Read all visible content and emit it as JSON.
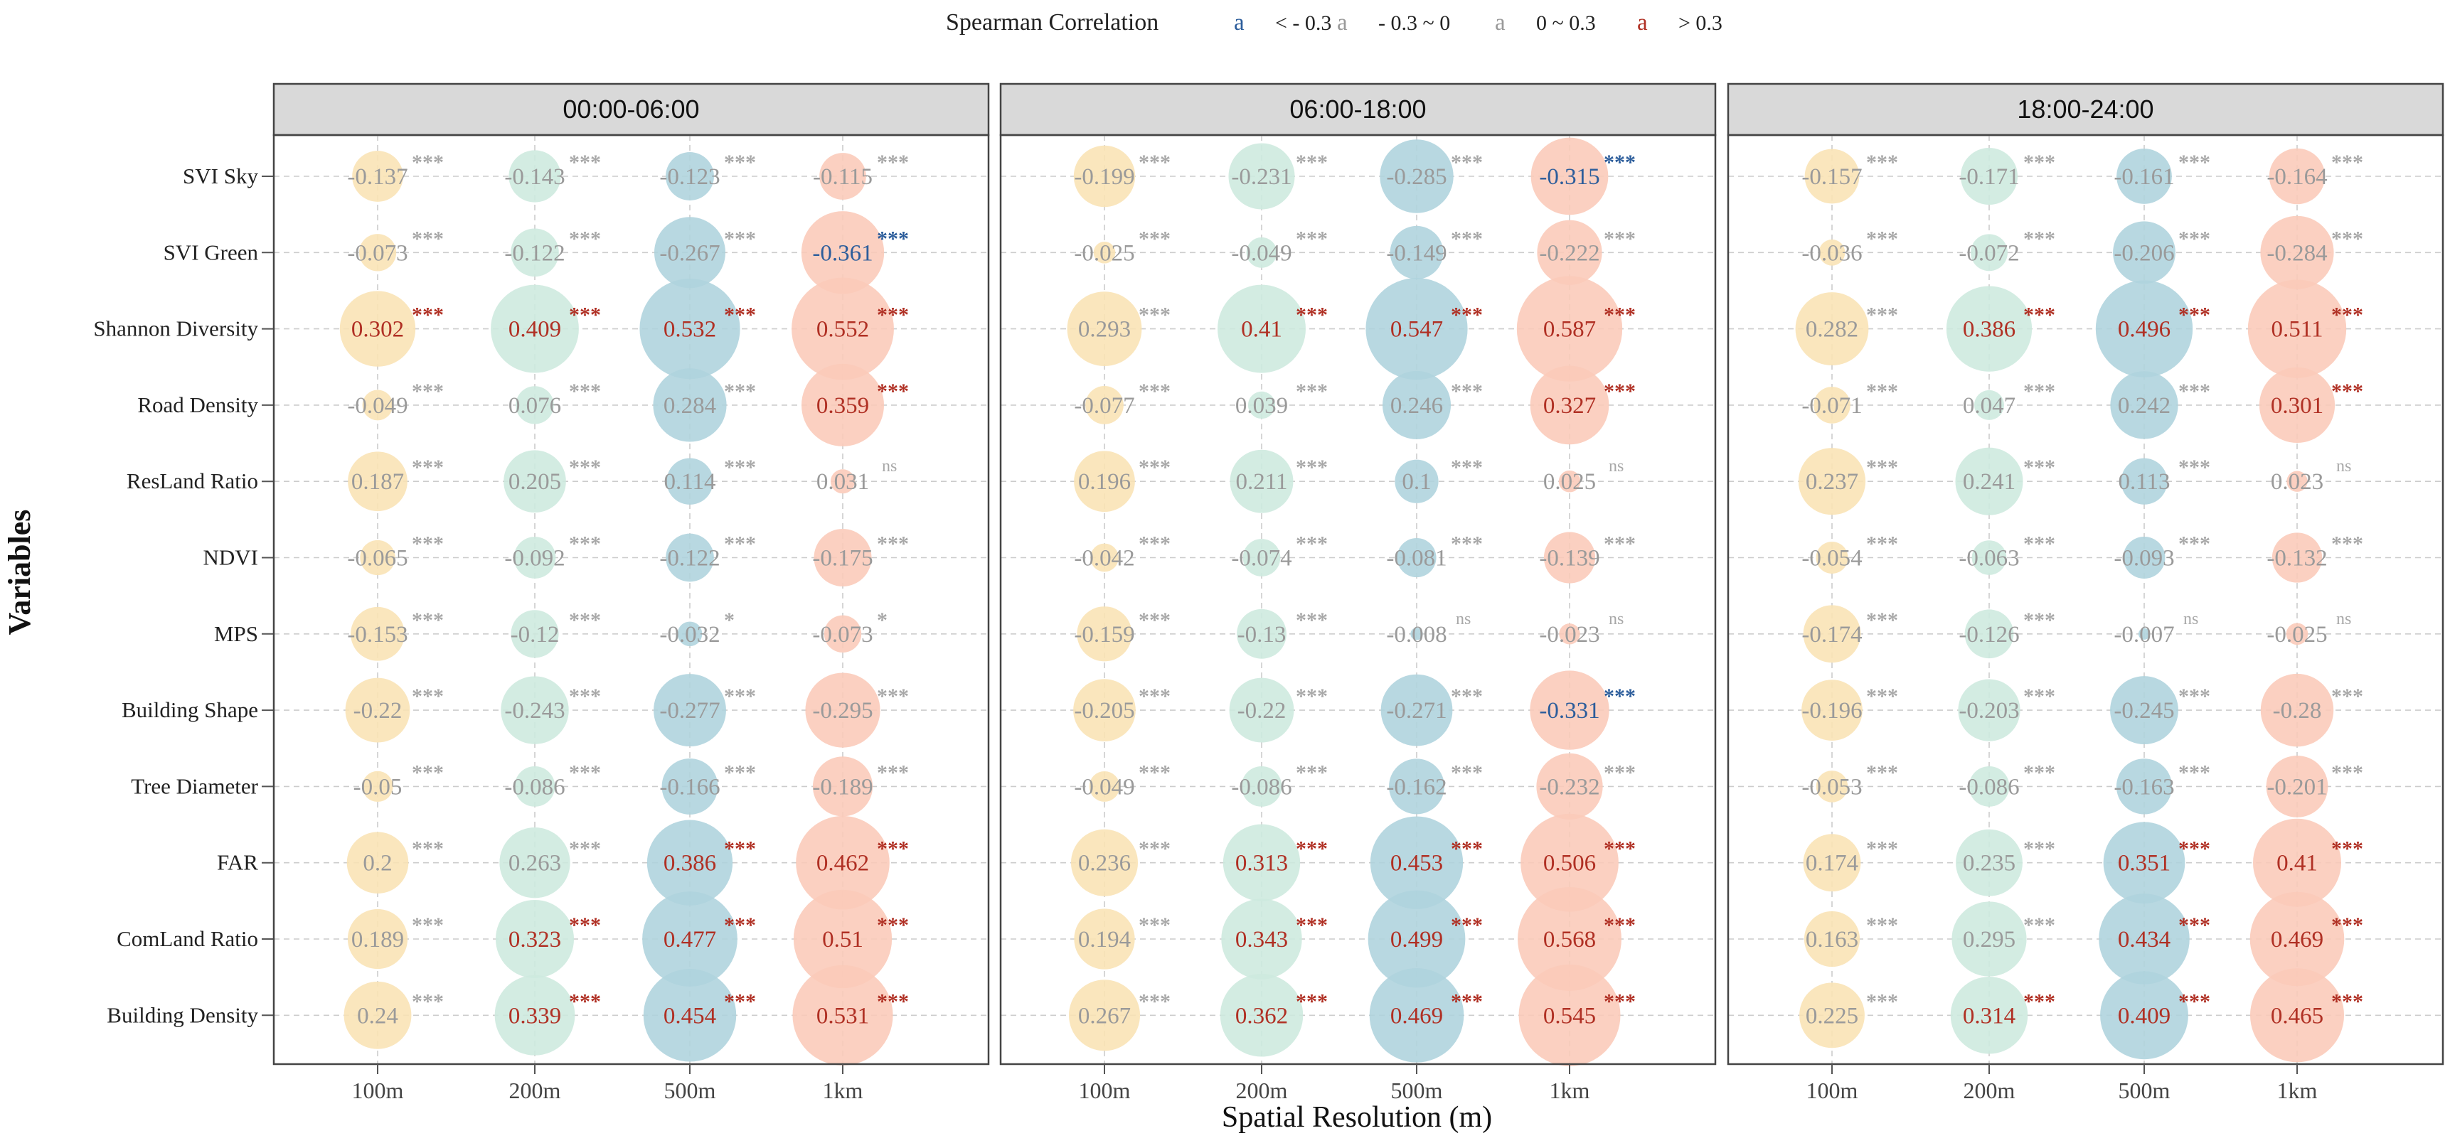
{
  "chart_data": {
    "type": "bubble-matrix",
    "title": "",
    "legend": {
      "title": "Spearman Correlation",
      "glyph": "a",
      "items": [
        {
          "glyph": "a",
          "label": "< - 0.3",
          "color": "#2c5d9b"
        },
        {
          "glyph": "a",
          "label": "- 0.3 ~ 0",
          "color": "#9a9a9a"
        },
        {
          "glyph": "a",
          "label": "0 ~ 0.3",
          "color": "#9a9a9a"
        },
        {
          "glyph": "a",
          "label": "> 0.3",
          "color": "#b03024"
        }
      ],
      "position": "top-center"
    },
    "xlabel": "Spatial Resolution (m)",
    "ylabel": "Variables",
    "resolutions": [
      "100m",
      "200m",
      "500m",
      "1km"
    ],
    "resolution_colors": [
      "#f9e3b4",
      "#cde9de",
      "#aed3dd",
      "#fbcab8"
    ],
    "variables": [
      "SVI Sky",
      "SVI Green",
      "Shannon Diversity",
      "Road Density",
      "ResLand Ratio",
      "NDVI",
      "MPS",
      "Building Shape",
      "Tree Diameter",
      "FAR",
      "ComLand Ratio",
      "Building Density"
    ],
    "panels": [
      {
        "title": "00:00-06:00",
        "values": [
          [
            -0.137,
            -0.143,
            -0.123,
            -0.115
          ],
          [
            -0.073,
            -0.122,
            -0.267,
            -0.361
          ],
          [
            0.302,
            0.409,
            0.532,
            0.552
          ],
          [
            -0.049,
            0.076,
            0.284,
            0.359
          ],
          [
            0.187,
            0.205,
            0.114,
            0.031
          ],
          [
            -0.065,
            -0.092,
            -0.122,
            -0.175
          ],
          [
            -0.153,
            -0.12,
            -0.032,
            -0.073
          ],
          [
            -0.22,
            -0.243,
            -0.277,
            -0.295
          ],
          [
            -0.05,
            -0.086,
            -0.166,
            -0.189
          ],
          [
            0.2,
            0.263,
            0.386,
            0.462
          ],
          [
            0.189,
            0.323,
            0.477,
            0.51
          ],
          [
            0.24,
            0.339,
            0.454,
            0.531
          ]
        ],
        "sig": [
          [
            "***",
            "***",
            "***",
            "***"
          ],
          [
            "***",
            "***",
            "***",
            "***"
          ],
          [
            "***",
            "***",
            "***",
            "***"
          ],
          [
            "***",
            "***",
            "***",
            "***"
          ],
          [
            "***",
            "***",
            "***",
            "ns"
          ],
          [
            "***",
            "***",
            "***",
            "***"
          ],
          [
            "***",
            "***",
            "*",
            "*"
          ],
          [
            "***",
            "***",
            "***",
            "***"
          ],
          [
            "***",
            "***",
            "***",
            "***"
          ],
          [
            "***",
            "***",
            "***",
            "***"
          ],
          [
            "***",
            "***",
            "***",
            "***"
          ],
          [
            "***",
            "***",
            "***",
            "***"
          ]
        ]
      },
      {
        "title": "06:00-18:00",
        "values": [
          [
            -0.199,
            -0.231,
            -0.285,
            -0.315
          ],
          [
            -0.025,
            -0.049,
            -0.149,
            -0.222
          ],
          [
            0.293,
            0.41,
            0.547,
            0.587
          ],
          [
            -0.077,
            0.039,
            0.246,
            0.327
          ],
          [
            0.196,
            0.211,
            0.1,
            0.025
          ],
          [
            -0.042,
            -0.074,
            -0.081,
            -0.139
          ],
          [
            -0.159,
            -0.13,
            -0.008,
            -0.023
          ],
          [
            -0.205,
            -0.22,
            -0.271,
            -0.331
          ],
          [
            -0.049,
            -0.086,
            -0.162,
            -0.232
          ],
          [
            0.236,
            0.313,
            0.453,
            0.506
          ],
          [
            0.194,
            0.343,
            0.499,
            0.568
          ],
          [
            0.267,
            0.362,
            0.469,
            0.545
          ]
        ],
        "sig": [
          [
            "***",
            "***",
            "***",
            "***"
          ],
          [
            "***",
            "***",
            "***",
            "***"
          ],
          [
            "***",
            "***",
            "***",
            "***"
          ],
          [
            "***",
            "***",
            "***",
            "***"
          ],
          [
            "***",
            "***",
            "***",
            "ns"
          ],
          [
            "***",
            "***",
            "***",
            "***"
          ],
          [
            "***",
            "***",
            "ns",
            "ns"
          ],
          [
            "***",
            "***",
            "***",
            "***"
          ],
          [
            "***",
            "***",
            "***",
            "***"
          ],
          [
            "***",
            "***",
            "***",
            "***"
          ],
          [
            "***",
            "***",
            "***",
            "***"
          ],
          [
            "***",
            "***",
            "***",
            "***"
          ]
        ]
      },
      {
        "title": "18:00-24:00",
        "values": [
          [
            -0.157,
            -0.171,
            -0.161,
            -0.164
          ],
          [
            -0.036,
            -0.072,
            -0.206,
            -0.284
          ],
          [
            0.282,
            0.386,
            0.496,
            0.511
          ],
          [
            -0.071,
            0.047,
            0.242,
            0.301
          ],
          [
            0.237,
            0.241,
            0.113,
            0.023
          ],
          [
            -0.054,
            -0.063,
            -0.093,
            -0.132
          ],
          [
            -0.174,
            -0.126,
            -0.007,
            -0.025
          ],
          [
            -0.196,
            -0.203,
            -0.245,
            -0.28
          ],
          [
            -0.053,
            -0.086,
            -0.163,
            -0.201
          ],
          [
            0.174,
            0.235,
            0.351,
            0.41
          ],
          [
            0.163,
            0.295,
            0.434,
            0.469
          ],
          [
            0.225,
            0.314,
            0.409,
            0.465
          ]
        ],
        "sig": [
          [
            "***",
            "***",
            "***",
            "***"
          ],
          [
            "***",
            "***",
            "***",
            "***"
          ],
          [
            "***",
            "***",
            "***",
            "***"
          ],
          [
            "***",
            "***",
            "***",
            "***"
          ],
          [
            "***",
            "***",
            "***",
            "ns"
          ],
          [
            "***",
            "***",
            "***",
            "***"
          ],
          [
            "***",
            "***",
            "ns",
            "ns"
          ],
          [
            "***",
            "***",
            "***",
            "***"
          ],
          [
            "***",
            "***",
            "***",
            "***"
          ],
          [
            "***",
            "***",
            "***",
            "***"
          ],
          [
            "***",
            "***",
            "***",
            "***"
          ],
          [
            "***",
            "***",
            "***",
            "***"
          ]
        ]
      }
    ],
    "grid": true
  }
}
